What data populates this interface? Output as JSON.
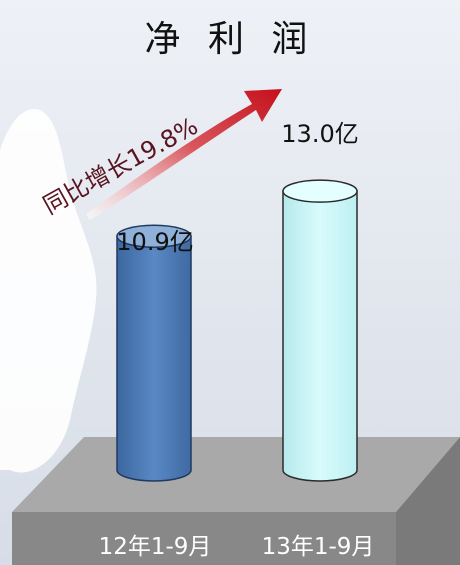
{
  "colors": {
    "background": "#dde3ec",
    "bar_1": "#4a78b4",
    "bar_2": "#c9f4f6",
    "arrow": "#c4101c",
    "platform_top": "#a8a8a8",
    "platform_front": "#888888"
  },
  "chart_data": {
    "type": "bar",
    "title": "净 利 润",
    "categories": [
      "12年1-9月",
      "13年1-9月"
    ],
    "series": [
      {
        "values": [
          10.9,
          13.0
        ],
        "labels": [
          "10.9亿",
          "13.0亿"
        ]
      }
    ],
    "ylim": [
      0,
      14.5
    ],
    "grid": false,
    "annotation": "同比增长19.8%"
  }
}
